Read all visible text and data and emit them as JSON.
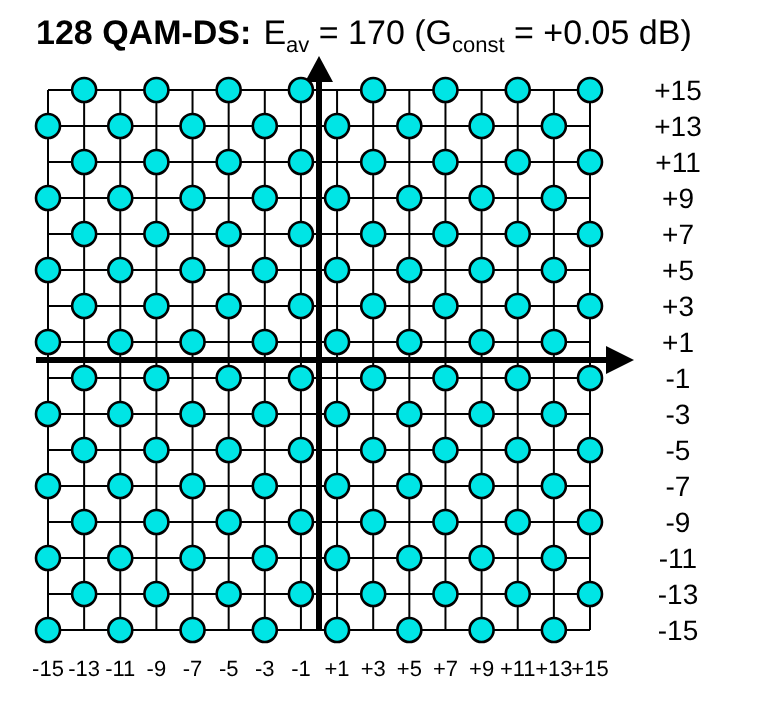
{
  "chart_data": {
    "type": "scatter",
    "title": "128 QAM-DS:",
    "subtitle": "E$_{av}$ =  170 (G$_{const}$ = +0.05 dB)",
    "xlim": [
      -15,
      15
    ],
    "ylim": [
      -15,
      15
    ],
    "xticks": [
      -15,
      -13,
      -11,
      -9,
      -7,
      -5,
      -3,
      -1,
      {
        "value": 1,
        "label": "+1"
      },
      {
        "value": 3,
        "label": "+3"
      },
      {
        "value": 5,
        "label": "+5"
      },
      {
        "value": 7,
        "label": "+7"
      },
      {
        "value": 9,
        "label": "+9"
      },
      {
        "value": 11,
        "label": "+11"
      },
      {
        "value": 13,
        "label": "+13"
      },
      {
        "value": 15,
        "label": "+15"
      }
    ],
    "yticks": [
      -15,
      -13,
      -11,
      -9,
      -7,
      -5,
      -3,
      -1,
      {
        "value": 1,
        "label": "+1"
      },
      {
        "value": 3,
        "label": "+3"
      },
      {
        "value": 5,
        "label": "+5"
      },
      {
        "value": 7,
        "label": "+7"
      },
      {
        "value": 9,
        "label": "+9"
      },
      {
        "value": 11,
        "label": "+11"
      },
      {
        "value": 13,
        "label": "+13"
      },
      {
        "value": 15,
        "label": "+15"
      }
    ],
    "grid": true,
    "marker": "circle",
    "series": [
      {
        "color": "#00e5e5",
        "x": [
          -13,
          -9,
          -5,
          -1,
          3,
          7,
          11,
          15,
          -15,
          -11,
          -7,
          -3,
          1,
          5,
          9,
          13,
          -13,
          -9,
          -5,
          -1,
          3,
          7,
          11,
          15,
          -15,
          -11,
          -7,
          -3,
          1,
          5,
          9,
          13,
          -13,
          -9,
          -5,
          -1,
          3,
          7,
          11,
          15,
          -15,
          -11,
          -7,
          -3,
          1,
          5,
          9,
          13,
          -13,
          -9,
          -5,
          -1,
          3,
          7,
          11,
          15,
          -15,
          -11,
          -7,
          -3,
          1,
          5,
          9,
          13,
          -13,
          -9,
          -5,
          -1,
          3,
          7,
          11,
          15,
          -15,
          -11,
          -7,
          -3,
          1,
          5,
          9,
          13,
          -13,
          -9,
          -5,
          -1,
          3,
          7,
          11,
          15,
          -15,
          -11,
          -7,
          -3,
          1,
          5,
          9,
          13,
          -13,
          -9,
          -5,
          -1,
          3,
          7,
          11,
          15,
          -15,
          -11,
          -7,
          -3,
          1,
          5,
          9,
          13,
          -13,
          -9,
          -5,
          -1,
          3,
          7,
          11,
          15,
          -15,
          -11,
          -7,
          -3,
          1,
          5,
          9,
          13
        ],
        "values": [
          15,
          15,
          15,
          15,
          15,
          15,
          15,
          15,
          13,
          13,
          13,
          13,
          13,
          13,
          13,
          13,
          11,
          11,
          11,
          11,
          11,
          11,
          11,
          11,
          9,
          9,
          9,
          9,
          9,
          9,
          9,
          9,
          7,
          7,
          7,
          7,
          7,
          7,
          7,
          7,
          5,
          5,
          5,
          5,
          5,
          5,
          5,
          5,
          3,
          3,
          3,
          3,
          3,
          3,
          3,
          3,
          1,
          1,
          1,
          1,
          1,
          1,
          1,
          1,
          -1,
          -1,
          -1,
          -1,
          -1,
          -1,
          -1,
          -1,
          -3,
          -3,
          -3,
          -3,
          -3,
          -3,
          -3,
          -3,
          -5,
          -5,
          -5,
          -5,
          -5,
          -5,
          -5,
          -5,
          -7,
          -7,
          -7,
          -7,
          -7,
          -7,
          -7,
          -7,
          -9,
          -9,
          -9,
          -9,
          -9,
          -9,
          -9,
          -9,
          -11,
          -11,
          -11,
          -11,
          -11,
          -11,
          -11,
          -11,
          -13,
          -13,
          -13,
          -13,
          -13,
          -13,
          -13,
          -13,
          -15,
          -15,
          -15,
          -15,
          -15,
          -15,
          -15,
          -15
        ]
      }
    ]
  }
}
